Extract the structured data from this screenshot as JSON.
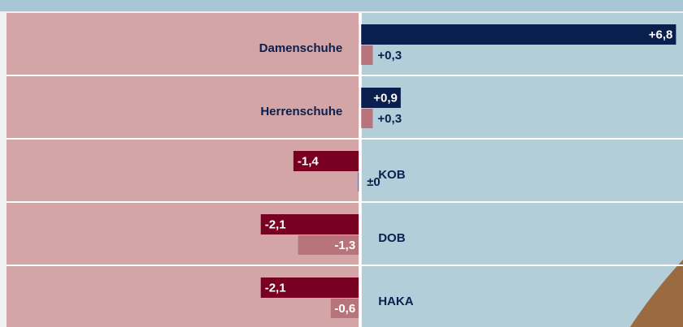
{
  "chart_data": {
    "type": "diverging-bar",
    "categories": [
      "Damenschuhe",
      "Herrenschuhe",
      "KOB",
      "DOB",
      "HAKA"
    ],
    "series": [
      {
        "positive_color": "#0b1f4f",
        "negative_color": "#780021",
        "values": [
          6.8,
          0.9,
          -1.4,
          -2.1,
          -2.1
        ],
        "value_labels": [
          "+6,8",
          "+0,9",
          "-1,4",
          "-2,1",
          "-2,1"
        ]
      },
      {
        "positive_color": "#b7747b",
        "negative_color": "#b7747b",
        "zero_color": "#56679a",
        "values": [
          0.3,
          0.3,
          0,
          -1.3,
          -0.6
        ],
        "value_labels": [
          "+0,3",
          "+0,3",
          "±0",
          "-1,3",
          "-0,6"
        ]
      }
    ],
    "xlim": [
      -7.55,
      6.95
    ]
  }
}
